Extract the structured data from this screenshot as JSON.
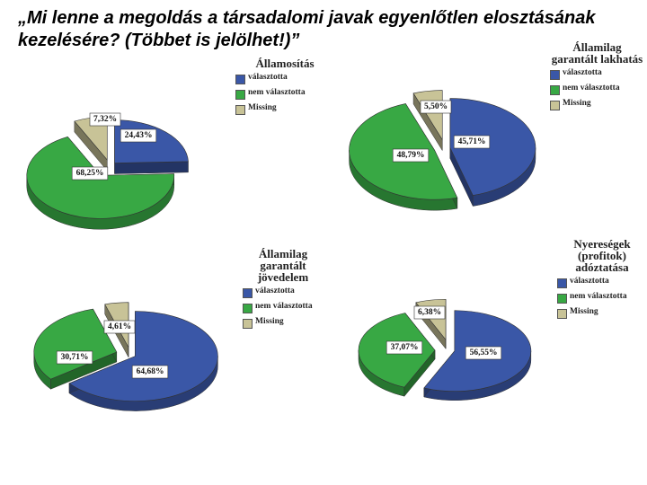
{
  "slide": {
    "title": "„Mi lenne a megoldás a társadalomi javak egyenlőtlen elosztásának kezelésére? (Többet is jelölhet!)”"
  },
  "colors": {
    "valasztotta": "#3a57a7",
    "nem_valasztotta": "#38a844",
    "missing": "#c8c397"
  },
  "chart_data": [
    {
      "type": "pie",
      "title": "Államosítás",
      "categories": [
        "választotta",
        "nem választotta",
        "Missing"
      ],
      "values": [
        24.43,
        68.25,
        7.32
      ],
      "labels": [
        "24,43%",
        "68,25%",
        "7,32%"
      ],
      "legend": "right"
    },
    {
      "type": "pie",
      "title": "Államilag garantált lakhatás",
      "categories": [
        "választotta",
        "nem választotta",
        "Missing"
      ],
      "values": [
        45.71,
        48.79,
        5.5
      ],
      "labels": [
        "45,71%",
        "48,79%",
        "5,50%"
      ],
      "legend": "right"
    },
    {
      "type": "pie",
      "title": "Államilag garantált jövedelem",
      "categories": [
        "választotta",
        "nem választotta",
        "Missing"
      ],
      "values": [
        64.68,
        30.71,
        4.61
      ],
      "labels": [
        "64,68%",
        "30,71%",
        "4,61%"
      ],
      "legend": "right"
    },
    {
      "type": "pie",
      "title": "Nyereségek (profitok) adóztatása",
      "categories": [
        "választotta",
        "nem választotta",
        "Missing"
      ],
      "values": [
        56.55,
        37.07,
        6.38
      ],
      "labels": [
        "56,55%",
        "37,07%",
        "6,38%"
      ],
      "legend": "right"
    }
  ]
}
